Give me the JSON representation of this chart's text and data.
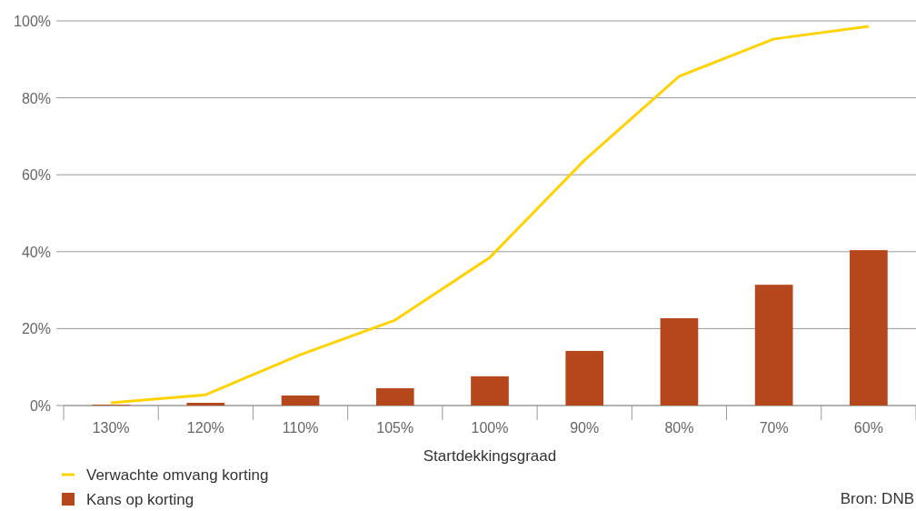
{
  "chart_data": {
    "type": "bar",
    "xlabel": "Startdekkingsgraad",
    "categories": [
      "130%",
      "120%",
      "110%",
      "105%",
      "100%",
      "90%",
      "80%",
      "70%",
      "60%"
    ],
    "series": [
      {
        "name": "Verwachte omvang korting",
        "type": "line",
        "color": "#ffd200",
        "values": [
          0.7,
          2.8,
          13.2,
          22.2,
          38.5,
          63.8,
          85.6,
          95.3,
          98.6
        ]
      },
      {
        "name": "Kans op korting",
        "color": "#b5471d",
        "values": [
          0.2,
          0.7,
          2.6,
          4.5,
          7.6,
          14.2,
          22.7,
          31.4,
          40.4
        ]
      }
    ],
    "ylim": [
      0,
      100
    ],
    "yticks": [
      {
        "value": 0,
        "label": "0%"
      },
      {
        "value": 20,
        "label": "20%"
      },
      {
        "value": 40,
        "label": "40%"
      },
      {
        "value": 60,
        "label": "60%"
      },
      {
        "value": 80,
        "label": "80%"
      },
      {
        "value": 100,
        "label": "100%"
      }
    ],
    "grid": "y",
    "legend": "bottom",
    "marker": "none",
    "annotations": [
      "Bron: DNB"
    ]
  }
}
